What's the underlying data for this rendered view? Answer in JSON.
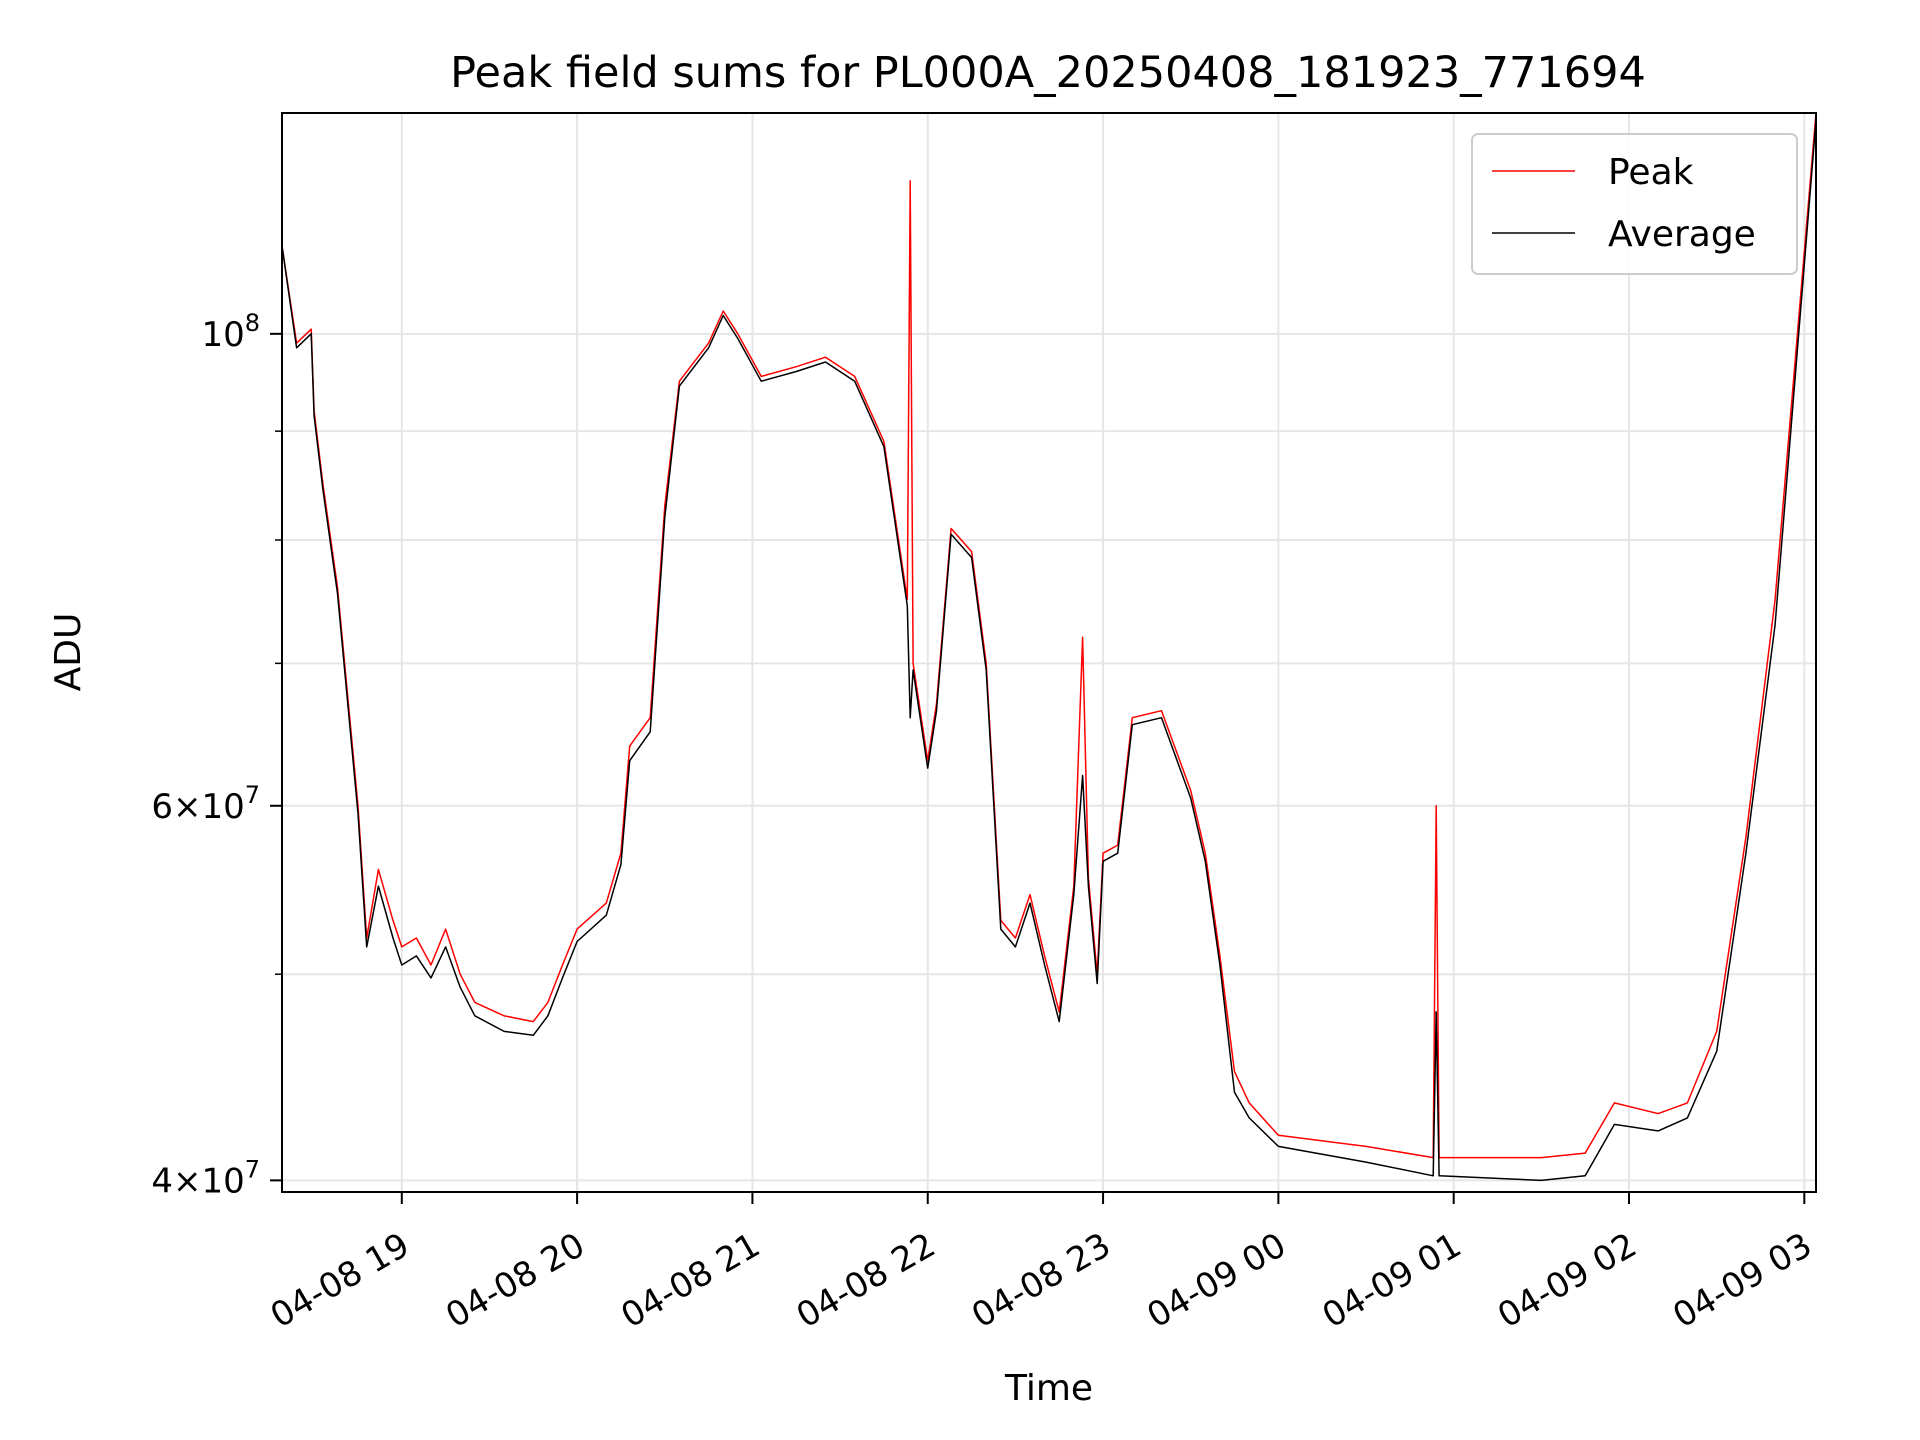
{
  "chart_data": {
    "type": "line",
    "title": "Peak field sums for PL000A_20250408_181923_771694",
    "xlabel": "Time",
    "ylabel": "ADU",
    "x_scale": "time",
    "y_scale": "log",
    "xlim": [
      "2025-04-08 18:19",
      "2025-04-09 03:04"
    ],
    "ylim": [
      39500000,
      127000000
    ],
    "grid": true,
    "legend_position": "top-right",
    "x_ticks": [
      {
        "value": "2025-04-08 19:00",
        "label": "04-08 19"
      },
      {
        "value": "2025-04-08 20:00",
        "label": "04-08 20"
      },
      {
        "value": "2025-04-08 21:00",
        "label": "04-08 21"
      },
      {
        "value": "2025-04-08 22:00",
        "label": "04-08 22"
      },
      {
        "value": "2025-04-08 23:00",
        "label": "04-08 23"
      },
      {
        "value": "2025-04-09 00:00",
        "label": "04-09 00"
      },
      {
        "value": "2025-04-09 01:00",
        "label": "04-09 01"
      },
      {
        "value": "2025-04-09 02:00",
        "label": "04-09 02"
      },
      {
        "value": "2025-04-09 03:00",
        "label": "04-09 03"
      }
    ],
    "y_ticks": [
      {
        "value": 40000000,
        "base": "4×10",
        "exp": "7"
      },
      {
        "value": 60000000,
        "base": "6×10",
        "exp": "7"
      },
      {
        "value": 100000000,
        "base": "10",
        "exp": "8"
      }
    ],
    "y_minor_ticks": [
      50000000,
      70000000,
      80000000,
      90000000
    ],
    "series": [
      {
        "name": "Peak",
        "color": "#ff0000",
        "points": [
          [
            "2025-04-08 18:19",
            110000000
          ],
          [
            "2025-04-08 18:24",
            99000000
          ],
          [
            "2025-04-08 18:29",
            100500000
          ],
          [
            "2025-04-08 18:30",
            92000000
          ],
          [
            "2025-04-08 18:33",
            85000000
          ],
          [
            "2025-04-08 18:38",
            76000000
          ],
          [
            "2025-04-08 18:45",
            60000000
          ],
          [
            "2025-04-08 18:48",
            52000000
          ],
          [
            "2025-04-08 18:52",
            56000000
          ],
          [
            "2025-04-08 18:57",
            53000000
          ],
          [
            "2025-04-08 19:00",
            51500000
          ],
          [
            "2025-04-08 19:05",
            52000000
          ],
          [
            "2025-04-08 19:10",
            50500000
          ],
          [
            "2025-04-08 19:15",
            52500000
          ],
          [
            "2025-04-08 19:20",
            50000000
          ],
          [
            "2025-04-08 19:25",
            48500000
          ],
          [
            "2025-04-08 19:35",
            47800000
          ],
          [
            "2025-04-08 19:45",
            47500000
          ],
          [
            "2025-04-08 19:50",
            48500000
          ],
          [
            "2025-04-08 19:55",
            50500000
          ],
          [
            "2025-04-08 20:00",
            52500000
          ],
          [
            "2025-04-08 20:10",
            54000000
          ],
          [
            "2025-04-08 20:15",
            57000000
          ],
          [
            "2025-04-08 20:18",
            64000000
          ],
          [
            "2025-04-08 20:25",
            66000000
          ],
          [
            "2025-04-08 20:30",
            83000000
          ],
          [
            "2025-04-08 20:35",
            95000000
          ],
          [
            "2025-04-08 20:45",
            99000000
          ],
          [
            "2025-04-08 20:50",
            102500000
          ],
          [
            "2025-04-08 20:55",
            100000000
          ],
          [
            "2025-04-08 21:03",
            95500000
          ],
          [
            "2025-04-08 21:15",
            96500000
          ],
          [
            "2025-04-08 21:25",
            97500000
          ],
          [
            "2025-04-08 21:35",
            95500000
          ],
          [
            "2025-04-08 21:45",
            89000000
          ],
          [
            "2025-04-08 21:50",
            80000000
          ],
          [
            "2025-04-08 21:53",
            75000000
          ],
          [
            "2025-04-08 21:54",
            118000000
          ],
          [
            "2025-04-08 21:55",
            70000000
          ],
          [
            "2025-04-08 22:00",
            63000000
          ],
          [
            "2025-04-08 22:03",
            67000000
          ],
          [
            "2025-04-08 22:08",
            81000000
          ],
          [
            "2025-04-08 22:15",
            79000000
          ],
          [
            "2025-04-08 22:20",
            70000000
          ],
          [
            "2025-04-08 22:25",
            53000000
          ],
          [
            "2025-04-08 22:30",
            52000000
          ],
          [
            "2025-04-08 22:35",
            54500000
          ],
          [
            "2025-04-08 22:40",
            51000000
          ],
          [
            "2025-04-08 22:45",
            48000000
          ],
          [
            "2025-04-08 22:50",
            55000000
          ],
          [
            "2025-04-08 22:53",
            72000000
          ],
          [
            "2025-04-08 22:55",
            55500000
          ],
          [
            "2025-04-08 22:58",
            50000000
          ],
          [
            "2025-04-08 23:00",
            57000000
          ],
          [
            "2025-04-08 23:05",
            57500000
          ],
          [
            "2025-04-08 23:10",
            66000000
          ],
          [
            "2025-04-08 23:20",
            66500000
          ],
          [
            "2025-04-08 23:30",
            61000000
          ],
          [
            "2025-04-08 23:35",
            57000000
          ],
          [
            "2025-04-08 23:40",
            51000000
          ],
          [
            "2025-04-08 23:45",
            45000000
          ],
          [
            "2025-04-08 23:50",
            43500000
          ],
          [
            "2025-04-09 00:00",
            42000000
          ],
          [
            "2025-04-09 00:30",
            41500000
          ],
          [
            "2025-04-09 00:53",
            41000000
          ],
          [
            "2025-04-09 00:54",
            60000000
          ],
          [
            "2025-04-09 00:55",
            41000000
          ],
          [
            "2025-04-09 01:30",
            41000000
          ],
          [
            "2025-04-09 01:45",
            41200000
          ],
          [
            "2025-04-09 01:55",
            43500000
          ],
          [
            "2025-04-09 02:10",
            43000000
          ],
          [
            "2025-04-09 02:20",
            43500000
          ],
          [
            "2025-04-09 02:30",
            47000000
          ],
          [
            "2025-04-09 02:40",
            58000000
          ],
          [
            "2025-04-09 02:50",
            75000000
          ],
          [
            "2025-04-09 03:04",
            127000000
          ]
        ]
      },
      {
        "name": "Average",
        "color": "#000000",
        "points": [
          [
            "2025-04-08 18:19",
            110000000
          ],
          [
            "2025-04-08 18:24",
            98500000
          ],
          [
            "2025-04-08 18:29",
            100000000
          ],
          [
            "2025-04-08 18:30",
            91500000
          ],
          [
            "2025-04-08 18:33",
            84500000
          ],
          [
            "2025-04-08 18:38",
            75500000
          ],
          [
            "2025-04-08 18:45",
            59500000
          ],
          [
            "2025-04-08 18:48",
            51500000
          ],
          [
            "2025-04-08 18:52",
            55000000
          ],
          [
            "2025-04-08 18:57",
            52000000
          ],
          [
            "2025-04-08 19:00",
            50500000
          ],
          [
            "2025-04-08 19:05",
            51000000
          ],
          [
            "2025-04-08 19:10",
            49800000
          ],
          [
            "2025-04-08 19:15",
            51500000
          ],
          [
            "2025-04-08 19:20",
            49300000
          ],
          [
            "2025-04-08 19:25",
            47800000
          ],
          [
            "2025-04-08 19:35",
            47000000
          ],
          [
            "2025-04-08 19:45",
            46800000
          ],
          [
            "2025-04-08 19:50",
            47800000
          ],
          [
            "2025-04-08 19:55",
            49800000
          ],
          [
            "2025-04-08 20:00",
            51800000
          ],
          [
            "2025-04-08 20:10",
            53300000
          ],
          [
            "2025-04-08 20:15",
            56300000
          ],
          [
            "2025-04-08 20:18",
            63000000
          ],
          [
            "2025-04-08 20:25",
            65000000
          ],
          [
            "2025-04-08 20:30",
            82000000
          ],
          [
            "2025-04-08 20:35",
            94500000
          ],
          [
            "2025-04-08 20:45",
            98500000
          ],
          [
            "2025-04-08 20:50",
            102000000
          ],
          [
            "2025-04-08 20:55",
            99500000
          ],
          [
            "2025-04-08 21:03",
            95000000
          ],
          [
            "2025-04-08 21:15",
            96000000
          ],
          [
            "2025-04-08 21:25",
            97000000
          ],
          [
            "2025-04-08 21:35",
            95000000
          ],
          [
            "2025-04-08 21:45",
            88500000
          ],
          [
            "2025-04-08 21:50",
            79500000
          ],
          [
            "2025-04-08 21:53",
            74500000
          ],
          [
            "2025-04-08 21:54",
            66000000
          ],
          [
            "2025-04-08 21:55",
            69500000
          ],
          [
            "2025-04-08 22:00",
            62500000
          ],
          [
            "2025-04-08 22:03",
            66500000
          ],
          [
            "2025-04-08 22:08",
            80500000
          ],
          [
            "2025-04-08 22:15",
            78500000
          ],
          [
            "2025-04-08 22:20",
            69500000
          ],
          [
            "2025-04-08 22:25",
            52500000
          ],
          [
            "2025-04-08 22:30",
            51500000
          ],
          [
            "2025-04-08 22:35",
            54000000
          ],
          [
            "2025-04-08 22:40",
            50500000
          ],
          [
            "2025-04-08 22:45",
            47500000
          ],
          [
            "2025-04-08 22:50",
            54500000
          ],
          [
            "2025-04-08 22:53",
            62000000
          ],
          [
            "2025-04-08 22:55",
            55000000
          ],
          [
            "2025-04-08 22:58",
            49500000
          ],
          [
            "2025-04-08 23:00",
            56500000
          ],
          [
            "2025-04-08 23:05",
            57000000
          ],
          [
            "2025-04-08 23:10",
            65500000
          ],
          [
            "2025-04-08 23:20",
            66000000
          ],
          [
            "2025-04-08 23:30",
            60500000
          ],
          [
            "2025-04-08 23:35",
            56500000
          ],
          [
            "2025-04-08 23:40",
            50500000
          ],
          [
            "2025-04-08 23:45",
            44000000
          ],
          [
            "2025-04-08 23:50",
            42800000
          ],
          [
            "2025-04-09 00:00",
            41500000
          ],
          [
            "2025-04-09 00:30",
            40800000
          ],
          [
            "2025-04-09 00:53",
            40200000
          ],
          [
            "2025-04-09 00:54",
            48000000
          ],
          [
            "2025-04-09 00:55",
            40200000
          ],
          [
            "2025-04-09 01:30",
            40000000
          ],
          [
            "2025-04-09 01:45",
            40200000
          ],
          [
            "2025-04-09 01:55",
            42500000
          ],
          [
            "2025-04-09 02:10",
            42200000
          ],
          [
            "2025-04-09 02:20",
            42800000
          ],
          [
            "2025-04-09 02:30",
            46000000
          ],
          [
            "2025-04-09 02:40",
            57000000
          ],
          [
            "2025-04-09 02:50",
            73000000
          ],
          [
            "2025-04-09 03:04",
            126000000
          ]
        ]
      }
    ]
  }
}
